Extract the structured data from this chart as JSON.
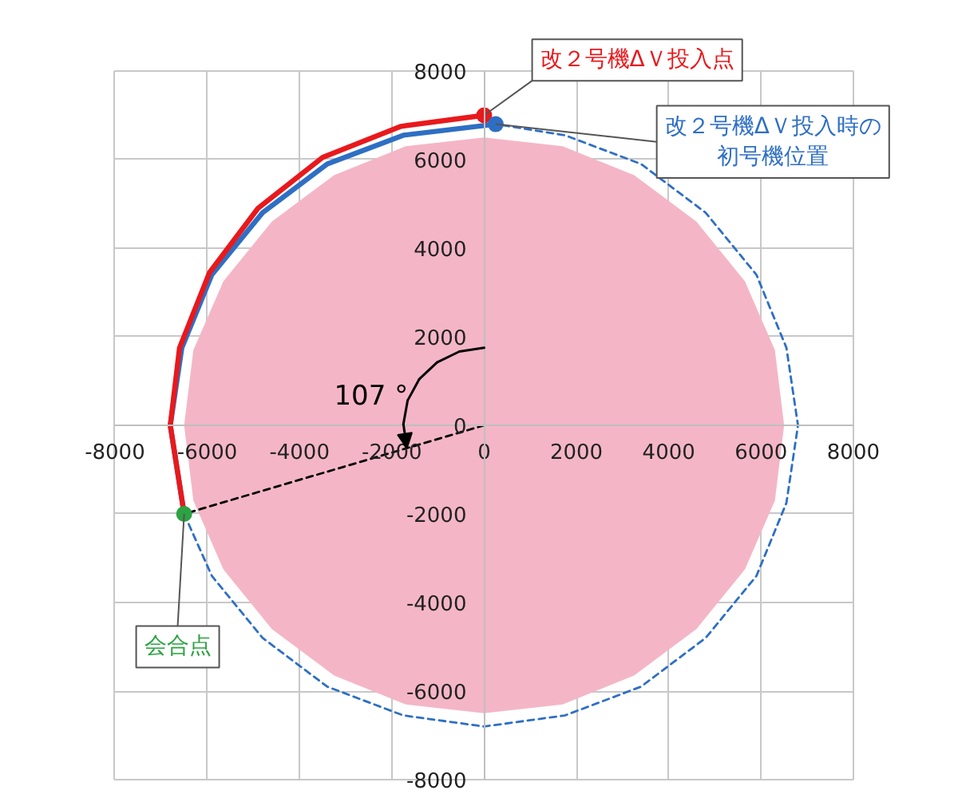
{
  "chart_data": {
    "type": "line",
    "xlim": [
      -8000,
      8000
    ],
    "ylim": [
      -8000,
      8000
    ],
    "xticks": [
      -8000,
      -6000,
      -4000,
      -2000,
      0,
      2000,
      4000,
      6000,
      8000
    ],
    "yticks": [
      -8000,
      -6000,
      -4000,
      -2000,
      0,
      2000,
      4000,
      6000,
      8000
    ],
    "grid": true,
    "series": [
      {
        "type": "area",
        "color": "#f4b6c6",
        "x": [
          6500,
          6300,
          5650,
          4600,
          3250,
          1700,
          0,
          -1700,
          -3250,
          -4600,
          -5650,
          -6300,
          -6500,
          -6300,
          -5650,
          -4600,
          -3250,
          -1700,
          0,
          1700,
          3250,
          4600,
          5650,
          6300,
          6500
        ],
        "values": [
          0,
          1700,
          3250,
          4600,
          5650,
          6300,
          6500,
          6300,
          5650,
          4600,
          3250,
          1700,
          0,
          -1700,
          -3250,
          -4600,
          -5650,
          -6300,
          -6500,
          -6300,
          -5650,
          -4600,
          -3250,
          -1700,
          0
        ]
      },
      {
        "color": "#2e6fc4",
        "line_style": "dashed",
        "x": [
          -6500,
          -5900,
          -4800,
          -3400,
          -1750,
          0,
          1750,
          3400,
          4800,
          5900,
          6550,
          6800,
          6550,
          5900,
          4800,
          3400,
          1750,
          250
        ],
        "values": [
          -2000,
          -3400,
          -4800,
          -5900,
          -6550,
          -6800,
          -6550,
          -5900,
          -4800,
          -3400,
          -1750,
          0,
          1750,
          3400,
          4800,
          5900,
          6550,
          6800
        ]
      },
      {
        "color": "#2e6fc4",
        "x": [
          250,
          -1750,
          -3400,
          -4800,
          -5900,
          -6550,
          -6800,
          -6500
        ],
        "values": [
          6800,
          6550,
          5900,
          4800,
          3400,
          1750,
          0,
          -2000
        ]
      },
      {
        "color": "#e8191c",
        "x": [
          0,
          -1800,
          -3500,
          -4900,
          -5950,
          -6600,
          -6800,
          -6500
        ],
        "values": [
          7000,
          6750,
          6050,
          4900,
          3450,
          1750,
          0,
          -2000
        ]
      },
      {
        "color": "#000000",
        "line_style": "dashed",
        "x": [
          0,
          -6500
        ],
        "values": [
          0,
          -2000
        ]
      },
      {
        "type": "scatter",
        "marker": "circle",
        "colors": [
          "#e8191c",
          "#2e6fc4",
          "#2ca243"
        ],
        "x": [
          0,
          250,
          -6500
        ],
        "values": [
          7000,
          6800,
          -2000
        ]
      }
    ],
    "annotations": [
      {
        "text": "改２号機ΔＶ投入点",
        "x": 0,
        "y": 7000
      },
      {
        "text": "改２号機ΔＶ投入時の初号機位置",
        "x": 250,
        "y": 6800
      },
      {
        "text": "会合点",
        "x": -6500,
        "y": -2000
      },
      "107 °"
    ]
  }
}
